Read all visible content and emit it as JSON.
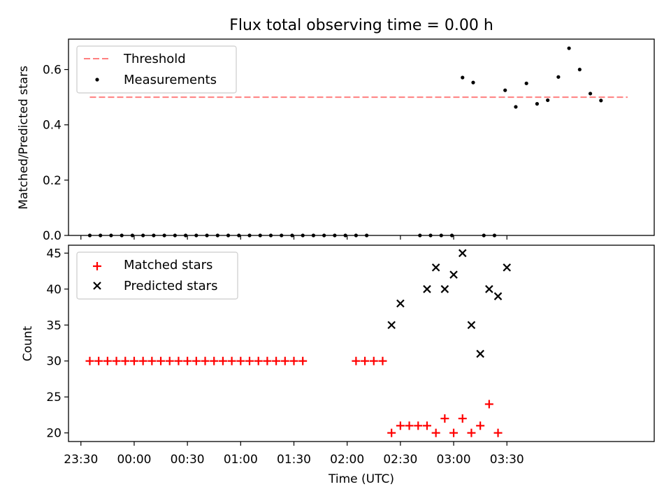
{
  "chart_data": [
    {
      "type": "scatter",
      "title": "Flux total observing time = 0.00 h",
      "ylabel": "Matched/Predicted stars",
      "ylim": [
        0,
        0.71
      ],
      "xlim": [
        -37,
        293
      ],
      "yticks": [
        0.0,
        0.2,
        0.4,
        0.6
      ],
      "ytick_labels": [
        "0.0",
        "0.2",
        "0.4",
        "0.6"
      ],
      "threshold": {
        "name": "Threshold",
        "value": 0.5,
        "x_start": -25,
        "x_end": 278,
        "color": "#ff7f7f"
      },
      "legend": {
        "position": "upper-left",
        "entries": [
          "Threshold",
          "Measurements"
        ]
      },
      "series": [
        {
          "name": "Measurements",
          "color": "#000000",
          "marker": "dot",
          "x": [
            -25,
            -19,
            -13,
            -7,
            -1,
            5,
            11,
            17,
            23,
            29,
            35,
            41,
            47,
            53,
            59,
            65,
            71,
            77,
            83,
            89,
            95,
            101,
            107,
            113,
            119,
            125,
            131,
            137,
            143,
            149,
            155,
            161,
            167,
            173,
            179,
            185,
            191,
            197,
            203,
            209,
            215,
            221,
            227,
            233,
            239,
            245,
            251,
            257,
            263,
            269,
            275
          ],
          "y": [
            0,
            0,
            0,
            0,
            0,
            0,
            0,
            0,
            0,
            0,
            0,
            0,
            0,
            0,
            0,
            0,
            0,
            0,
            0,
            0,
            0,
            0,
            0,
            0,
            0,
            0,
            0,
            null,
            null,
            null,
            null,
            0,
            0,
            0,
            0,
            0.571,
            0.553,
            0,
            0,
            0.525,
            0.465,
            0.55,
            0.476,
            0.489,
            0.573,
            0.677,
            0.6,
            0.513,
            0.488,
            null,
            null
          ]
        }
      ]
    },
    {
      "type": "scatter",
      "xlabel": "Time (UTC)",
      "ylabel": "Count",
      "ylim": [
        18.8,
        46.1
      ],
      "xlim": [
        -37,
        293
      ],
      "yticks": [
        20,
        25,
        30,
        35,
        40,
        45
      ],
      "ytick_labels": [
        "20",
        "25",
        "30",
        "35",
        "40",
        "45"
      ],
      "xticks": [
        -30,
        0,
        30,
        60,
        90,
        120,
        150,
        180,
        210
      ],
      "xtick_labels": [
        "23:30",
        "00:00",
        "00:30",
        "01:00",
        "01:30",
        "02:00",
        "02:30",
        "03:00",
        "03:30"
      ],
      "legend": {
        "position": "upper-left",
        "entries": [
          "Matched stars",
          "Predicted stars"
        ]
      },
      "series": [
        {
          "name": "Matched stars",
          "color": "#ff0000",
          "marker": "plus",
          "x": [
            -25,
            -20,
            -15,
            -10,
            -5,
            0,
            5,
            10,
            15,
            20,
            25,
            30,
            35,
            40,
            45,
            50,
            55,
            60,
            65,
            70,
            75,
            80,
            85,
            90,
            95,
            125,
            130,
            135,
            140,
            145,
            150,
            155,
            160,
            165,
            170,
            175,
            180,
            185,
            190,
            195,
            200,
            205
          ],
          "y": [
            30,
            30,
            30,
            30,
            30,
            30,
            30,
            30,
            30,
            30,
            30,
            30,
            30,
            30,
            30,
            30,
            30,
            30,
            30,
            30,
            30,
            30,
            30,
            30,
            30,
            30,
            30,
            30,
            30,
            20,
            21,
            21,
            21,
            21,
            20,
            22,
            20,
            22,
            20,
            21,
            24,
            20
          ]
        },
        {
          "name": "Predicted stars",
          "color": "#000000",
          "marker": "x",
          "x": [
            145,
            150,
            165,
            170,
            175,
            180,
            185,
            190,
            195,
            200,
            205,
            210
          ],
          "y": [
            35,
            38,
            40,
            43,
            40,
            42,
            45,
            35,
            31,
            40,
            39,
            43
          ]
        }
      ]
    }
  ]
}
